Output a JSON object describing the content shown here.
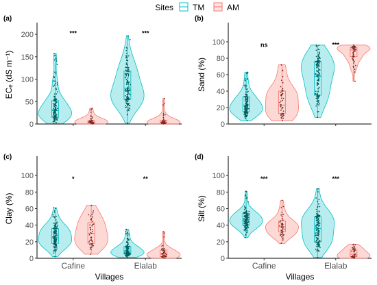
{
  "legend": {
    "title": "Sites",
    "items": [
      {
        "label": "TM",
        "color": "#00BFC4"
      },
      {
        "label": "AM",
        "color": "#F8766D"
      }
    ]
  },
  "colors": {
    "TM": "#00BFC4",
    "AM": "#F8766D",
    "TM_point": "#00605f",
    "AM_point": "#7a2a24",
    "axis": "#000000"
  },
  "chart_data": [
    {
      "type": "violin",
      "panel": "(a)",
      "ylabel": "ECₑ (dS m⁻¹)",
      "xlabel": "",
      "categories": [
        "Cafine",
        "Elalab"
      ],
      "show_x_ticks": false,
      "ylim": [
        0,
        220
      ],
      "yticks": [
        0,
        50,
        100,
        150,
        200
      ],
      "significance": [
        "***",
        "***"
      ],
      "series": [
        {
          "name": "TM",
          "groups": [
            {
              "min": 1,
              "q1": 15,
              "median": 30,
              "q3": 52,
              "max": 157
            },
            {
              "min": 2,
              "q1": 55,
              "median": 80,
              "q3": 118,
              "max": 197
            }
          ]
        },
        {
          "name": "AM",
          "groups": [
            {
              "min": 0,
              "q1": 2,
              "median": 4,
              "q3": 7,
              "max": 35
            },
            {
              "min": 0,
              "q1": 2,
              "median": 4,
              "q3": 8,
              "max": 57
            }
          ]
        }
      ]
    },
    {
      "type": "violin",
      "panel": "(b)",
      "ylabel": "Sand (%)",
      "xlabel": "",
      "categories": [
        "Cafine",
        "Elalab"
      ],
      "show_x_ticks": false,
      "ylim": [
        0,
        120
      ],
      "yticks": [
        0,
        20,
        40,
        60,
        80,
        100
      ],
      "significance": [
        "ns",
        "***"
      ],
      "series": [
        {
          "name": "TM",
          "groups": [
            {
              "min": 4,
              "q1": 15,
              "median": 23,
              "q3": 33,
              "max": 63
            },
            {
              "min": 8,
              "q1": 35,
              "median": 58,
              "q3": 76,
              "max": 96
            }
          ]
        },
        {
          "name": "AM",
          "groups": [
            {
              "min": 4,
              "q1": 13,
              "median": 23,
              "q3": 40,
              "max": 72
            },
            {
              "min": 52,
              "q1": 82,
              "median": 90,
              "q3": 93,
              "max": 96
            }
          ]
        }
      ]
    },
    {
      "type": "violin",
      "panel": "(c)",
      "ylabel": "Clay (%)",
      "xlabel": "Villages",
      "categories": [
        "Cafine",
        "Elalab"
      ],
      "show_x_ticks": true,
      "ylim": [
        0,
        120
      ],
      "yticks": [
        0,
        20,
        40,
        60,
        80,
        100
      ],
      "significance": [
        "*",
        "**"
      ],
      "series": [
        {
          "name": "TM",
          "groups": [
            {
              "min": 2,
              "q1": 18,
              "median": 25,
              "q3": 36,
              "max": 61
            },
            {
              "min": 1,
              "q1": 5,
              "median": 9,
              "q3": 14,
              "max": 35
            }
          ]
        },
        {
          "name": "AM",
          "groups": [
            {
              "min": 5,
              "q1": 18,
              "median": 30,
              "q3": 43,
              "max": 64
            },
            {
              "min": 0,
              "q1": 2,
              "median": 5,
              "q3": 10,
              "max": 32
            }
          ]
        }
      ]
    },
    {
      "type": "violin",
      "panel": "(d)",
      "ylabel": "Silt (%)",
      "xlabel": "Villages",
      "categories": [
        "Cafine",
        "Elalab"
      ],
      "show_x_ticks": true,
      "ylim": [
        0,
        120
      ],
      "yticks": [
        0,
        20,
        40,
        60,
        80,
        100
      ],
      "significance": [
        "***",
        "***"
      ],
      "series": [
        {
          "name": "TM",
          "groups": [
            {
              "min": 25,
              "q1": 40,
              "median": 47,
              "q3": 54,
              "max": 81
            },
            {
              "min": 1,
              "q1": 20,
              "median": 36,
              "q3": 50,
              "max": 84
            }
          ]
        },
        {
          "name": "AM",
          "groups": [
            {
              "min": 18,
              "q1": 32,
              "median": 38,
              "q3": 45,
              "max": 70
            },
            {
              "min": 0,
              "q1": 2,
              "median": 5,
              "q3": 10,
              "max": 17
            }
          ]
        }
      ]
    }
  ]
}
